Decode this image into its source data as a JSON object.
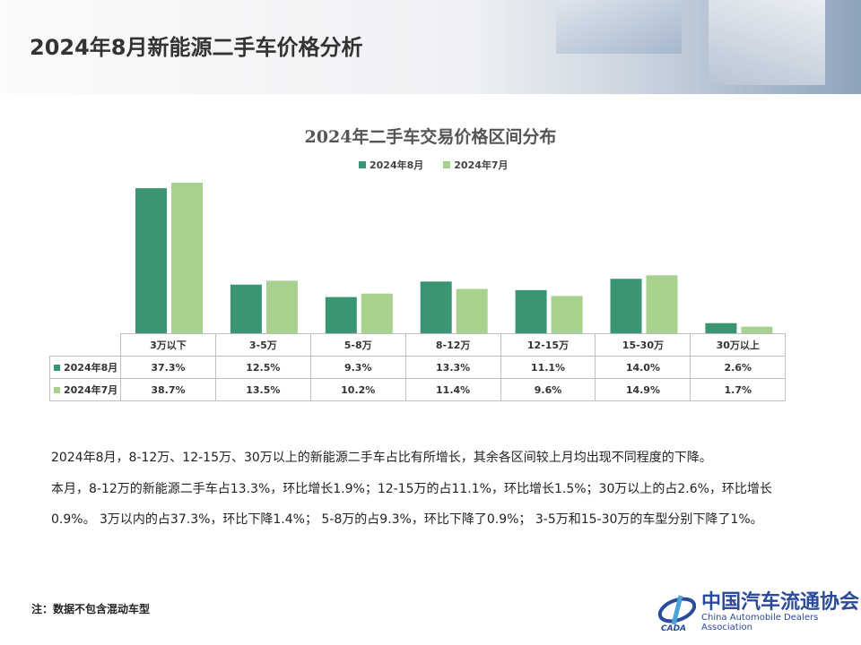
{
  "header": {
    "title": "2024年8月新能源二手车价格分析"
  },
  "chart_data": {
    "type": "bar",
    "title": "2024年二手车交易价格区间分布",
    "categories": [
      "3万以下",
      "3-5万",
      "5-8万",
      "8-12万",
      "12-15万",
      "15-30万",
      "30万以上"
    ],
    "series": [
      {
        "name": "2024年8月",
        "color": "#3a9573",
        "values": [
          37.3,
          12.5,
          9.3,
          13.3,
          11.1,
          14.0,
          2.6
        ],
        "labels": [
          "37.3%",
          "12.5%",
          "9.3%",
          "13.3%",
          "11.1%",
          "14.0%",
          "2.6%"
        ]
      },
      {
        "name": "2024年7月",
        "color": "#a9d18e",
        "values": [
          38.7,
          13.5,
          10.2,
          11.4,
          9.6,
          14.9,
          1.7
        ],
        "labels": [
          "38.7%",
          "13.5%",
          "10.2%",
          "11.4%",
          "9.6%",
          "14.9%",
          "1.7%"
        ]
      }
    ],
    "ylim": [
      0,
      40
    ],
    "legend": "top",
    "grid": false,
    "data_table": true
  },
  "text": {
    "paragraphs": [
      "2024年8月，8-12万、12-15万、30万以上的新能源二手车占比有所增长，其余各区间较上月均出现不同程度的下降。",
      "本月，8-12万的新能源二手车占13.3%，环比增长1.9%；12-15万的占11.1%，环比增长1.5%；30万以上的占2.6%，环比增长0.9%。 3万以内的占37.3%，环比下降1.4%； 5-8万的占9.3%，环比下降了0.9%； 3-5万和15-30万的车型分别下降了1%。"
    ],
    "note": "注：数据不包含混动车型"
  },
  "logo": {
    "cn": "中国汽车流通协会",
    "en": "China Automobile Dealers Association",
    "mark": "CADA"
  }
}
